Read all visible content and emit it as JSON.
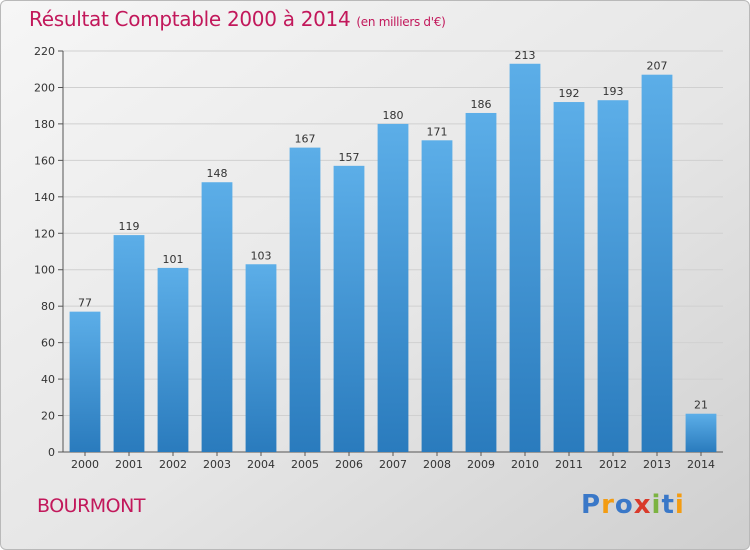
{
  "chart_data": {
    "type": "bar",
    "title": "Résultat Comptable 2000 à 2014",
    "unit_label": "(en milliers d'€)",
    "categories": [
      "2000",
      "2001",
      "2002",
      "2003",
      "2004",
      "2005",
      "2006",
      "2007",
      "2008",
      "2009",
      "2010",
      "2011",
      "2012",
      "2013",
      "2014"
    ],
    "values": [
      77,
      119,
      101,
      148,
      103,
      167,
      157,
      180,
      171,
      186,
      213,
      192,
      193,
      207,
      21
    ],
    "ylim": [
      0,
      220
    ],
    "yticks": [
      0,
      20,
      40,
      60,
      80,
      100,
      120,
      140,
      160,
      180,
      200,
      220
    ],
    "xlabel": "",
    "ylabel": "",
    "grid": true,
    "colors": {
      "bar_top": "#5caee8",
      "bar_bottom": "#2a7bbd",
      "grid": "#d0d0d0",
      "title": "#c2185b"
    }
  },
  "commune": "BOURMONT",
  "logo": {
    "letters": [
      "P",
      "r",
      "o",
      "x",
      "i",
      "t",
      "i"
    ],
    "colors": [
      "#3a78c8",
      "#f39c12",
      "#3a78c8",
      "#d93a2b",
      "#7cb342",
      "#3a78c8",
      "#f39c12"
    ]
  }
}
